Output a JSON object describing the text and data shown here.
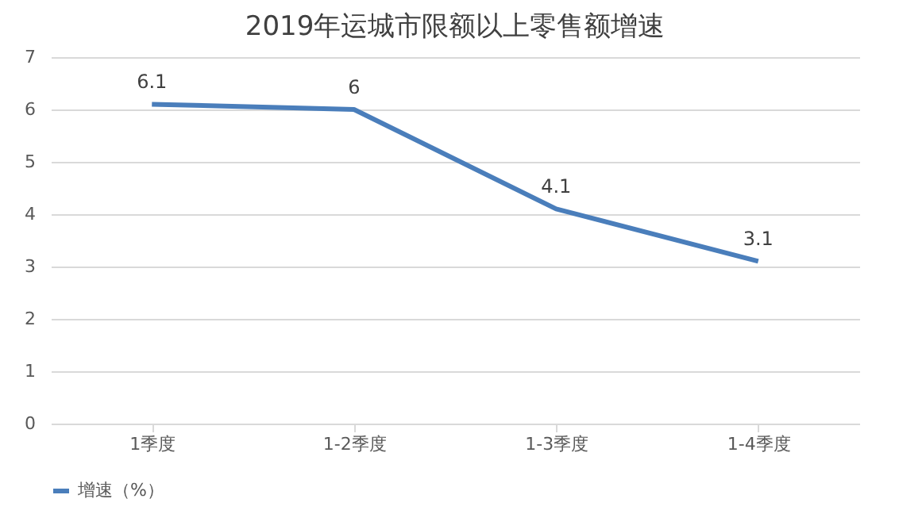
{
  "chart_data": {
    "type": "line",
    "title": "2019年运城市限额以上零售额增速",
    "categories": [
      "1季度",
      "1-2季度",
      "1-3季度",
      "1-4季度"
    ],
    "series": [
      {
        "name": "增速（%）",
        "color": "#4a7ebb",
        "values": [
          6.1,
          6,
          4.1,
          3.1
        ]
      }
    ],
    "ylim": [
      0,
      7
    ],
    "yticks": [
      0,
      1,
      2,
      3,
      4,
      5,
      6,
      7
    ],
    "grid": "y",
    "legend": "bottom",
    "data_labels": true,
    "marker": "none",
    "line_style": "solid"
  }
}
